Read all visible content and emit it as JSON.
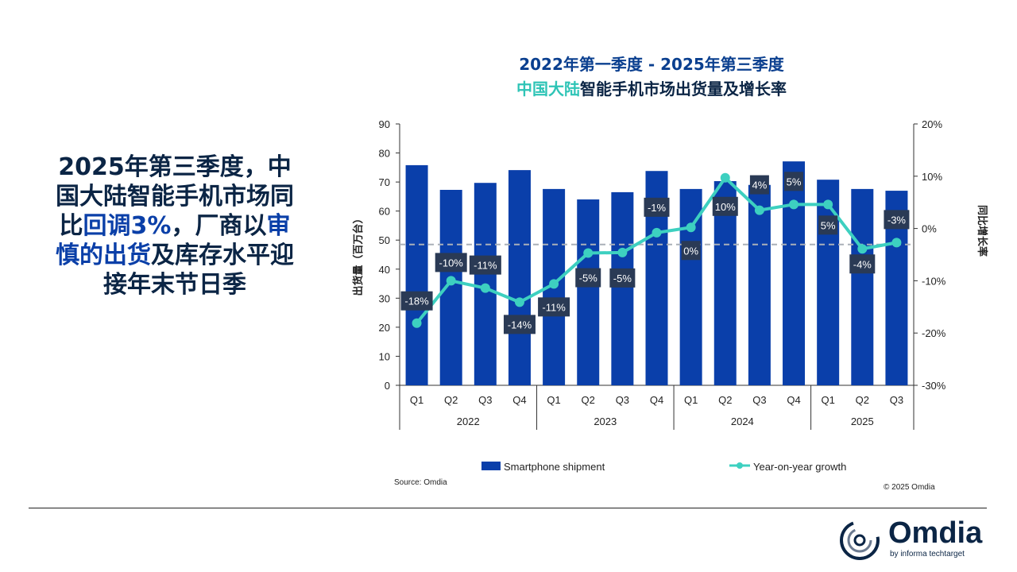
{
  "headline": {
    "p1": "2025年第三季度，中国大陆智能手机市场同比",
    "hl1": "回调3%",
    "p2": "，厂商以",
    "hl2": "审慎的出货",
    "p3": "及库存水平迎接年末节日季"
  },
  "chart_data": {
    "type": "bar+line",
    "title_line1": "2022年第一季度 - 2025年第三季度",
    "title_line2_teal": "中国大陆",
    "title_line2_rest": "智能手机市场出货量及增长率",
    "ylabel": "出货量（百万台）",
    "y2label": "同比增长率",
    "ylim": [
      0,
      90
    ],
    "yticks": [
      "0",
      "10",
      "20",
      "30",
      "40",
      "50",
      "60",
      "70",
      "80",
      "90"
    ],
    "y2lim": [
      -30,
      20
    ],
    "y2ticks": [
      "-30%",
      "-20%",
      "-10%",
      "0%",
      "10%",
      "20%"
    ],
    "categories": [
      "Q1",
      "Q2",
      "Q3",
      "Q4",
      "Q1",
      "Q2",
      "Q3",
      "Q4",
      "Q1",
      "Q2",
      "Q3",
      "Q4",
      "Q1",
      "Q2",
      "Q3"
    ],
    "years": [
      "2022",
      "2023",
      "2024",
      "2025"
    ],
    "series": [
      {
        "name": "Smartphone shipment",
        "axis": "left",
        "type": "bar",
        "color": "#0a3faa",
        "values": [
          75.8,
          67.3,
          69.7,
          74.1,
          67.6,
          64.0,
          66.5,
          73.8,
          67.6,
          70.3,
          69.0,
          77.1,
          70.8,
          67.6,
          67.0
        ]
      },
      {
        "name": "Year-on-year growth",
        "axis": "right",
        "type": "line",
        "color": "#3dd0c0",
        "values": [
          -18.1,
          -10.0,
          -11.4,
          -14.1,
          -10.6,
          -4.7,
          -4.6,
          -0.8,
          0.2,
          9.7,
          3.5,
          4.6,
          4.6,
          -3.9,
          -2.7
        ],
        "labels": [
          "-18%",
          "-10%",
          "-11%",
          "-14%",
          "-11%",
          "-5%",
          "-5%",
          "-1%",
          "0%",
          "10%",
          "4%",
          "5%",
          "5%",
          "-4%",
          "-3%"
        ]
      }
    ],
    "reference_line": 48.5,
    "legend_placement": "bottom",
    "grid": false
  },
  "source": "Source: Omdia",
  "copyright": "© 2025 Omdia",
  "logo": {
    "word": "Omdia",
    "by": "by informa techtarget"
  }
}
